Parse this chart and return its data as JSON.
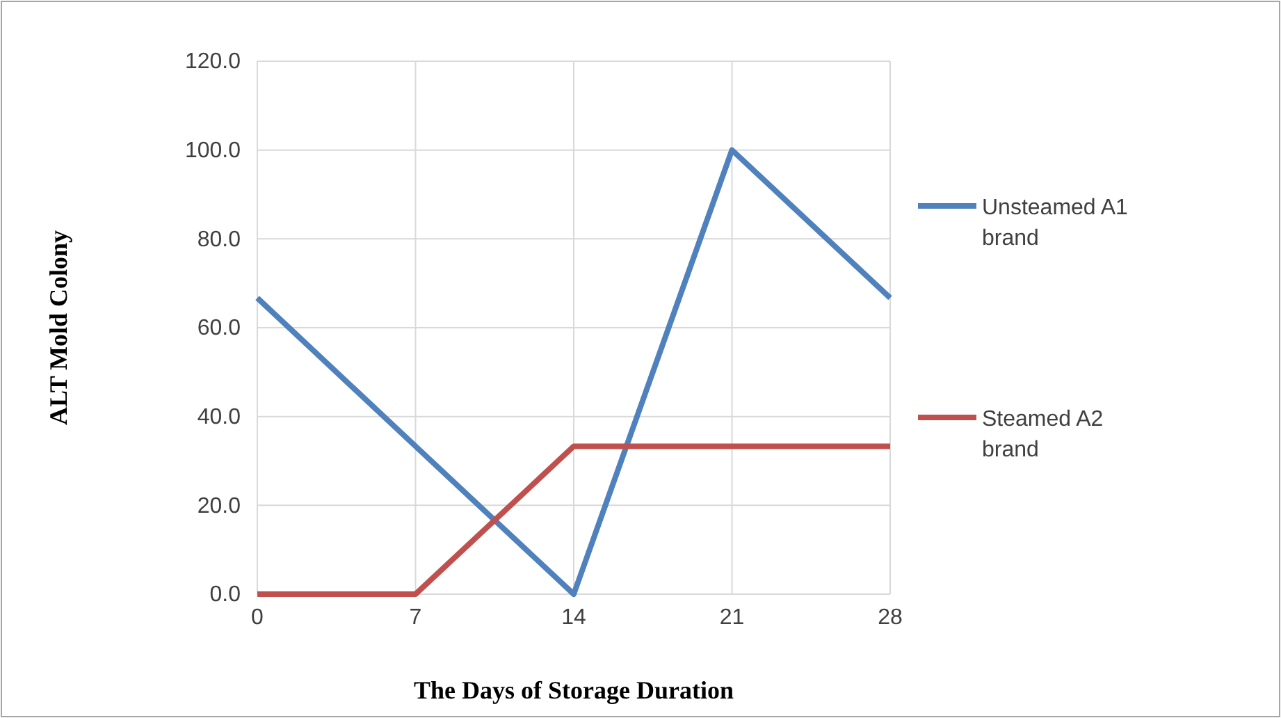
{
  "chart_data": {
    "type": "line",
    "xlabel": "The Days of Storage Duration",
    "ylabel": "ALT Mold Colony",
    "x": [
      0,
      7,
      14,
      21,
      28
    ],
    "series": [
      {
        "name": "Unsteamed A1 brand",
        "color": "#4f81bd",
        "values": [
          66.7,
          33.3,
          0,
          100,
          66.7
        ]
      },
      {
        "name": "Steamed A2 brand",
        "color": "#c0504d",
        "values": [
          0,
          0,
          33.3,
          33.3,
          33.3
        ]
      }
    ],
    "xlim": [
      0,
      28
    ],
    "xticks": [
      0,
      7,
      14,
      21,
      28
    ],
    "ylim": [
      0,
      120
    ],
    "yticks": [
      {
        "value": 0,
        "label": "0.0"
      },
      {
        "value": 20,
        "label": "20.0"
      },
      {
        "value": 40,
        "label": "40.0"
      },
      {
        "value": 60,
        "label": "60.0"
      },
      {
        "value": 80,
        "label": "80.0"
      },
      {
        "value": 100,
        "label": "100.0"
      },
      {
        "value": 120,
        "label": "120.0"
      }
    ],
    "grid": true,
    "legend": "right",
    "marker": "none",
    "line_style": "solid"
  }
}
